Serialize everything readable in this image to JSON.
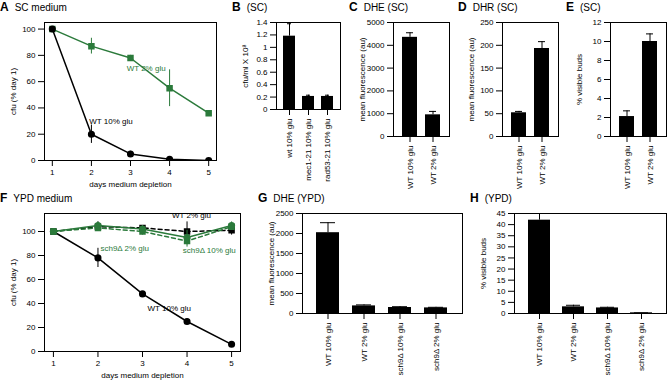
{
  "chart_data": [
    {
      "type": "line",
      "panel_label": "A",
      "title": "SC medium",
      "x_label": "days medium depletion",
      "y_label": "cfu (% day 1)",
      "x": [
        1,
        2,
        3,
        4,
        5
      ],
      "xlim": [
        0.8,
        5.2
      ],
      "xticks": [
        1,
        2,
        3,
        4,
        5
      ],
      "ylim": [
        0,
        105
      ],
      "yticks": [
        0,
        20,
        40,
        60,
        80,
        100
      ],
      "series": [
        {
          "name": "WT 2% glu",
          "color": "#2b7a3b",
          "marker": "square",
          "line_style": "solid",
          "values": [
            100,
            87,
            78,
            55,
            36
          ],
          "errors": [
            0,
            6,
            2,
            14,
            2
          ]
        },
        {
          "name": "WT 10% glu",
          "color": "#000000",
          "marker": "circle",
          "line_style": "solid",
          "values": [
            100,
            20,
            5,
            1,
            0
          ],
          "errors": [
            0,
            7,
            2,
            1,
            0
          ]
        }
      ],
      "annotations": [
        {
          "text": "WT 2% glu",
          "x": 3.4,
          "y": 70,
          "color": "#2b7a3b"
        },
        {
          "text": "WT 10% glu",
          "x": 2.5,
          "y": 30,
          "color": "#000000"
        }
      ]
    },
    {
      "type": "bar",
      "panel_label": "B",
      "title": "(SC)",
      "y_label": "cfu/ml X 10⁸",
      "categories": [
        "wt 10% glu",
        "mec1-21 10% glu",
        "rad53-21 10% glu"
      ],
      "values": [
        1.18,
        0.21,
        0.21
      ],
      "errors": [
        0.2,
        0.02,
        0.02
      ],
      "color": "#000000",
      "ylim": [
        0,
        1.4
      ],
      "yticks": [
        0,
        0.2,
        0.4,
        0.6,
        0.8,
        1,
        1.2,
        1.4
      ]
    },
    {
      "type": "bar",
      "panel_label": "C",
      "title": "DHE (SC)",
      "y_label": "mean fluorescence (au)",
      "categories": [
        "WT 10% glu",
        "WT 2% glu"
      ],
      "values": [
        4350,
        950
      ],
      "errors": [
        200,
        150
      ],
      "color": "#000000",
      "ylim": [
        0,
        5000
      ],
      "yticks": [
        0,
        1000,
        2000,
        3000,
        4000,
        5000
      ]
    },
    {
      "type": "bar",
      "panel_label": "D",
      "title": "DHR (SC)",
      "y_label": "mean fluorescence (au)",
      "categories": [
        "WT 10% glu",
        "WT 2% glu"
      ],
      "values": [
        52,
        193
      ],
      "errors": [
        3,
        15
      ],
      "color": "#000000",
      "ylim": [
        0,
        250
      ],
      "yticks": [
        0,
        50,
        100,
        150,
        200,
        250
      ]
    },
    {
      "type": "bar",
      "panel_label": "E",
      "title": "(SC)",
      "y_label": "% visible buds",
      "categories": [
        "WT 10% glu",
        "WT 2% glu"
      ],
      "values": [
        2.1,
        10
      ],
      "errors": [
        0.6,
        0.8
      ],
      "color": "#000000",
      "ylim": [
        0,
        12
      ],
      "yticks": [
        0,
        2,
        4,
        6,
        8,
        10,
        12
      ]
    },
    {
      "type": "line",
      "panel_label": "F",
      "title": "YPD medium",
      "x_label": "days medium depletion",
      "y_label": "cfu (% day 1)",
      "x": [
        1,
        2,
        3,
        4,
        5
      ],
      "xlim": [
        0.8,
        5.2
      ],
      "xticks": [
        1,
        2,
        3,
        4,
        5
      ],
      "ylim": [
        0,
        115
      ],
      "yticks": [
        0,
        20,
        40,
        60,
        80,
        100
      ],
      "series": [
        {
          "name": "WT 10% glu",
          "color": "#000000",
          "marker": "circle",
          "line_style": "solid",
          "values": [
            100,
            78,
            48,
            25,
            6
          ],
          "errors": [
            0,
            8,
            2,
            2,
            1
          ]
        },
        {
          "name": "WT 2% glu",
          "color": "#000000",
          "marker": "square",
          "line_style": "dashed",
          "values": [
            100,
            104,
            103,
            100,
            101
          ],
          "errors": [
            0,
            4,
            2,
            8,
            4
          ]
        },
        {
          "name": "sch9Δ 2% glu",
          "color": "#2b7a3b",
          "marker": "square",
          "line_style": "dashed",
          "values": [
            100,
            103,
            100,
            92,
            104
          ],
          "errors": [
            0,
            3,
            3,
            5,
            3
          ]
        },
        {
          "name": "sch9Δ 10% glu",
          "color": "#2b7a3b",
          "marker": "circle",
          "line_style": "solid",
          "values": [
            100,
            105,
            102,
            95,
            105
          ],
          "errors": [
            0,
            3,
            3,
            6,
            3
          ]
        }
      ],
      "annotations": [
        {
          "text": "WT 2% glu",
          "x": 4.1,
          "y": 113,
          "color": "#000000"
        },
        {
          "text": "sch9Δ 2% glu",
          "x": 2.6,
          "y": 86,
          "color": "#2b7a3b"
        },
        {
          "text": "sch9Δ 10% glu",
          "x": 4.5,
          "y": 84,
          "color": "#2b7a3b"
        },
        {
          "text": "WT 10% glu",
          "x": 3.6,
          "y": 36,
          "color": "#000000"
        }
      ]
    },
    {
      "type": "bar",
      "panel_label": "G",
      "title": "DHE (YPD)",
      "y_label": "mean fluorescence (au)",
      "categories": [
        "WT 10% glu",
        "WT 2% glu",
        "sch9Δ 10% glu",
        "sch9Δ 2% glu"
      ],
      "values": [
        2020,
        190,
        150,
        140
      ],
      "errors": [
        250,
        25,
        20,
        15
      ],
      "color": "#000000",
      "ylim": [
        0,
        2500
      ],
      "yticks": [
        0,
        500,
        1000,
        1500,
        2000,
        2500
      ]
    },
    {
      "type": "bar",
      "panel_label": "H",
      "title": "(YPD)",
      "y_label": "% visible buds",
      "categories": [
        "WT 10% glu",
        "WT 2% glu",
        "sch9Δ 10% glu",
        "sch9Δ 2% glu"
      ],
      "values": [
        42,
        3,
        2.5,
        0.3
      ],
      "errors": [
        3,
        0.7,
        0.3,
        0
      ],
      "color": "#000000",
      "ylim": [
        0,
        45
      ],
      "yticks": [
        0,
        5,
        10,
        15,
        20,
        25,
        30,
        35,
        40,
        45
      ]
    }
  ]
}
